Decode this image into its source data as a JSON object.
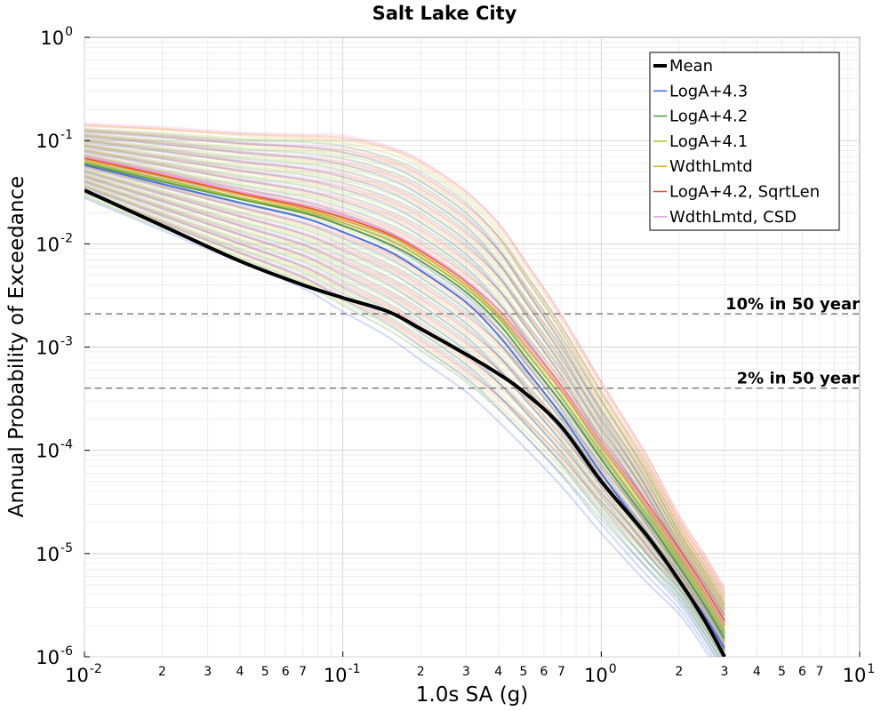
{
  "chart_data": {
    "type": "line",
    "title": "Salt Lake City",
    "xlabel": "1.0s SA (g)",
    "ylabel": "Annual Probability of Exceedance",
    "x_scale": "log",
    "y_scale": "log",
    "xlim": [
      0.01,
      10
    ],
    "ylim": [
      1e-06,
      1
    ],
    "grid": true,
    "legend_position": "top-right",
    "x_ticks_major": [
      {
        "base": "10",
        "exp": "-2"
      },
      {
        "base": "10",
        "exp": "-1"
      },
      {
        "base": "10",
        "exp": "0"
      },
      {
        "base": "10",
        "exp": "1"
      }
    ],
    "x_ticks_minor_labels": [
      "2",
      "3",
      "4",
      "5",
      "6",
      "7"
    ],
    "y_ticks_major": [
      {
        "base": "10",
        "exp": "0"
      },
      {
        "base": "10",
        "exp": "-1"
      },
      {
        "base": "10",
        "exp": "-2"
      },
      {
        "base": "10",
        "exp": "-3"
      },
      {
        "base": "10",
        "exp": "-4"
      },
      {
        "base": "10",
        "exp": "-5"
      },
      {
        "base": "10",
        "exp": "-6"
      }
    ],
    "reference_lines": [
      {
        "label": "10% in 50 year",
        "y": 0.0021,
        "color": "#808080"
      },
      {
        "label": "2% in 50 year",
        "y": 0.0004,
        "color": "#808080"
      }
    ],
    "series": [
      {
        "name": "Mean",
        "color": "#000000",
        "x": [
          0.01,
          0.02,
          0.04,
          0.07,
          0.1,
          0.15,
          0.2,
          0.3,
          0.4,
          0.5,
          0.7,
          1.0,
          1.5,
          2.0,
          2.5,
          3.0
        ],
        "y": [
          0.033,
          0.015,
          0.0068,
          0.004,
          0.003,
          0.0022,
          0.0015,
          0.00085,
          0.00055,
          0.00037,
          0.00017,
          5e-05,
          1.5e-05,
          5.5e-06,
          2.3e-06,
          1e-06
        ]
      },
      {
        "name": "LogA+4.3",
        "color": "#3f66e6",
        "x": [
          0.01,
          0.02,
          0.04,
          0.07,
          0.1,
          0.15,
          0.2,
          0.3,
          0.4,
          0.5,
          0.7,
          1.0,
          1.5,
          2.0,
          2.5,
          3.0
        ],
        "y": [
          0.058,
          0.038,
          0.025,
          0.018,
          0.013,
          0.0085,
          0.0055,
          0.0027,
          0.0013,
          0.00065,
          0.00022,
          6e-05,
          1.5e-05,
          5.5e-06,
          2.5e-06,
          1.2e-06
        ]
      },
      {
        "name": "LogA+4.2",
        "color": "#4a9b3c",
        "x": [
          0.01,
          0.02,
          0.04,
          0.07,
          0.1,
          0.15,
          0.2,
          0.3,
          0.4,
          0.5,
          0.7,
          1.0,
          1.5,
          2.0,
          2.5,
          3.0
        ],
        "y": [
          0.06,
          0.04,
          0.027,
          0.02,
          0.015,
          0.01,
          0.0068,
          0.0034,
          0.0017,
          0.00085,
          0.00029,
          8.2e-05,
          2.1e-05,
          7.5e-06,
          3.2e-06,
          1.5e-06
        ]
      },
      {
        "name": "LogA+4.1",
        "color": "#a8c42a",
        "x": [
          0.01,
          0.02,
          0.04,
          0.07,
          0.1,
          0.15,
          0.2,
          0.3,
          0.4,
          0.5,
          0.7,
          1.0,
          1.5,
          2.0,
          2.5,
          3.0
        ],
        "y": [
          0.062,
          0.042,
          0.028,
          0.021,
          0.016,
          0.011,
          0.0074,
          0.0037,
          0.0019,
          0.00095,
          0.00033,
          9.5e-05,
          2.4e-05,
          8.5e-06,
          3.6e-06,
          1.7e-06
        ]
      },
      {
        "name": "WdthLmtd",
        "color": "#f0a028",
        "x": [
          0.01,
          0.02,
          0.04,
          0.07,
          0.1,
          0.15,
          0.2,
          0.3,
          0.4,
          0.5,
          0.7,
          1.0,
          1.5,
          2.0,
          2.5,
          3.0
        ],
        "y": [
          0.066,
          0.045,
          0.03,
          0.022,
          0.017,
          0.012,
          0.008,
          0.004,
          0.0021,
          0.0011,
          0.00038,
          0.00011,
          2.8e-05,
          9.8e-06,
          4.2e-06,
          2e-06
        ]
      },
      {
        "name": "LogA+4.2, SqrtLen",
        "color": "#e6502a",
        "x": [
          0.01,
          0.02,
          0.04,
          0.07,
          0.1,
          0.15,
          0.2,
          0.3,
          0.4,
          0.5,
          0.7,
          1.0,
          1.5,
          2.0,
          2.5,
          3.0
        ],
        "y": [
          0.068,
          0.046,
          0.031,
          0.023,
          0.018,
          0.0125,
          0.0085,
          0.0043,
          0.0023,
          0.0012,
          0.00042,
          0.00012,
          3.1e-05,
          1.1e-05,
          4.7e-06,
          2.2e-06
        ]
      },
      {
        "name": "WdthLmtd, CSD",
        "color": "#e59ae0",
        "x": [
          0.01,
          0.02,
          0.04,
          0.07,
          0.1,
          0.15,
          0.2,
          0.3,
          0.4,
          0.5,
          0.7,
          1.0,
          1.5,
          2.0,
          2.5,
          3.0
        ],
        "y": [
          0.07,
          0.048,
          0.032,
          0.024,
          0.019,
          0.013,
          0.0088,
          0.0044,
          0.0023,
          0.0012,
          0.00041,
          0.00012,
          3e-05,
          1.05e-05,
          4.5e-06,
          2.1e-06
        ]
      }
    ]
  }
}
